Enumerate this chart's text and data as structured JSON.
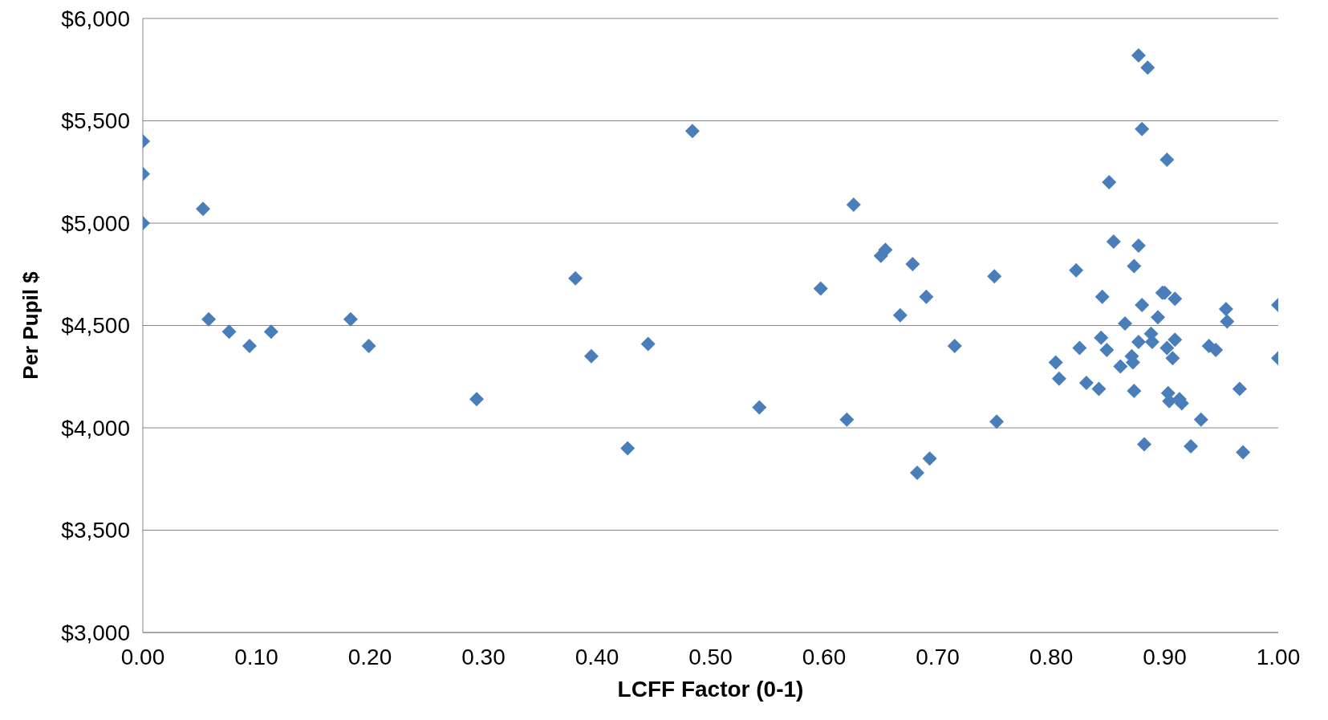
{
  "chart_data": {
    "type": "scatter",
    "xlabel": "LCFF Factor (0-1)",
    "ylabel": "Per Pupil $",
    "marker": "diamond",
    "grid": "y",
    "xlim": [
      0,
      1
    ],
    "xticks": [
      {
        "value": 0,
        "label": "0.00"
      },
      {
        "value": 0.1,
        "label": "0.10"
      },
      {
        "value": 0.2,
        "label": "0.20"
      },
      {
        "value": 0.3,
        "label": "0.30"
      },
      {
        "value": 0.4,
        "label": "0.40"
      },
      {
        "value": 0.5,
        "label": "0.50"
      },
      {
        "value": 0.6,
        "label": "0.60"
      },
      {
        "value": 0.7,
        "label": "0.70"
      },
      {
        "value": 0.8,
        "label": "0.80"
      },
      {
        "value": 0.9,
        "label": "0.90"
      },
      {
        "value": 1,
        "label": "1.00"
      }
    ],
    "ylim": [
      3000,
      6000
    ],
    "yticks": [
      {
        "value": 3000,
        "label": "$3,000"
      },
      {
        "value": 3500,
        "label": "$3,500"
      },
      {
        "value": 4000,
        "label": "$4,000"
      },
      {
        "value": 4500,
        "label": "$4,500"
      },
      {
        "value": 5000,
        "label": "$5,000"
      },
      {
        "value": 5500,
        "label": "$5,500"
      },
      {
        "value": 6000,
        "label": "$6,000"
      }
    ],
    "series": [
      {
        "color": "#4a7ebb",
        "x": [
          0,
          0,
          0,
          0.053,
          0.058,
          0.076,
          0.094,
          0.113,
          0.183,
          0.199,
          0.294,
          0.381,
          0.395,
          0.427,
          0.445,
          0.484,
          0.543,
          0.597,
          0.62,
          0.626,
          0.65,
          0.654,
          0.678,
          0.667,
          0.69,
          0.682,
          0.693,
          0.715,
          0.75,
          0.752,
          0.804,
          0.807,
          0.822,
          0.825,
          0.831,
          0.842,
          0.844,
          0.845,
          0.849,
          0.851,
          0.855,
          0.861,
          0.865,
          0.871,
          0.872,
          0.873,
          0.873,
          0.877,
          0.877,
          0.877,
          0.88,
          0.88,
          0.882,
          0.885,
          0.888,
          0.889,
          0.894,
          0.898,
          0.9,
          0.902,
          0.902,
          0.903,
          0.904,
          0.907,
          0.909,
          0.909,
          0.913,
          0.915,
          0.923,
          0.932,
          0.939,
          0.945,
          0.954,
          0.955,
          0.966,
          0.969,
          1,
          1
        ],
        "values": [
          5400,
          5240,
          5000,
          5070,
          4530,
          4470,
          4400,
          4470,
          4530,
          4400,
          4140,
          4730,
          4350,
          3900,
          4410,
          5450,
          4100,
          4680,
          4040,
          5090,
          4840,
          4870,
          4800,
          4550,
          4640,
          3780,
          3850,
          4400,
          4740,
          4030,
          4320,
          4240,
          4770,
          4390,
          4220,
          4190,
          4440,
          4640,
          4380,
          5200,
          4910,
          4300,
          4510,
          4350,
          4320,
          4180,
          4790,
          4890,
          5820,
          4420,
          4600,
          5460,
          3920,
          5760,
          4460,
          4420,
          4540,
          4660,
          4660,
          5310,
          4390,
          4170,
          4130,
          4340,
          4630,
          4430,
          4140,
          4120,
          3910,
          4040,
          4400,
          4380,
          4580,
          4520,
          4190,
          3880,
          4600,
          4340
        ]
      }
    ]
  }
}
